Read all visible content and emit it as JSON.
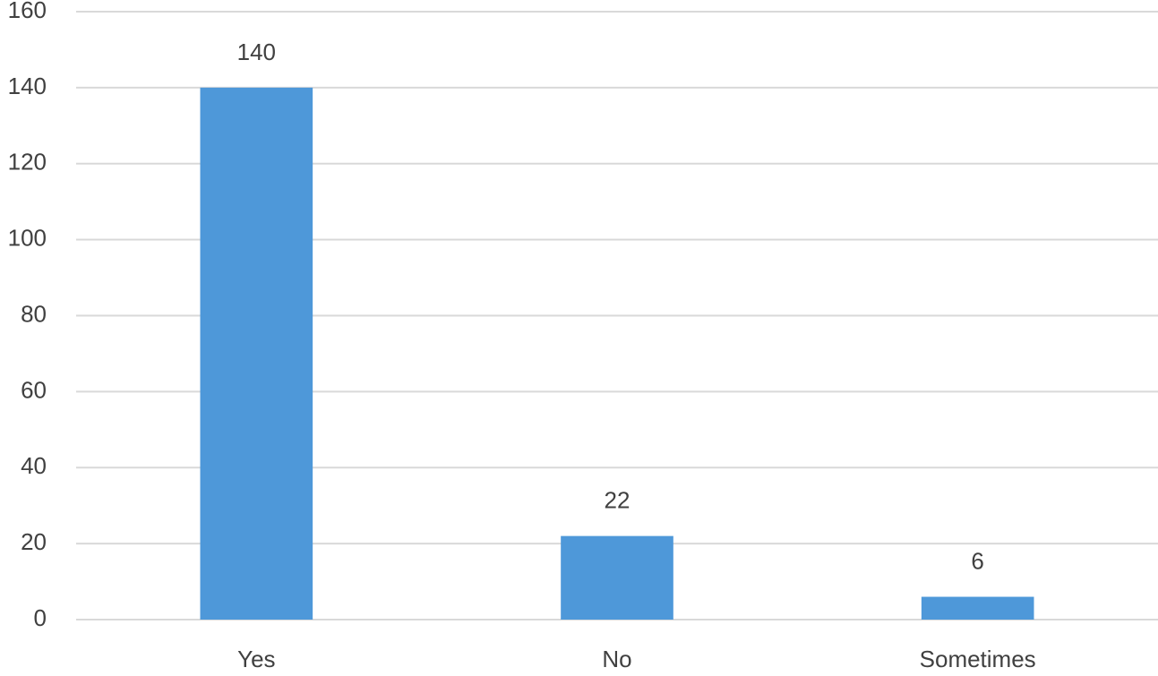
{
  "chart_data": {
    "type": "bar",
    "categories": [
      "Yes",
      "No",
      "Sometimes"
    ],
    "values": [
      140,
      22,
      6
    ],
    "color": "#4e98d9",
    "ylim": [
      0,
      160
    ],
    "yticks": [
      0,
      20,
      40,
      60,
      80,
      100,
      120,
      140,
      160
    ],
    "grid": true
  }
}
